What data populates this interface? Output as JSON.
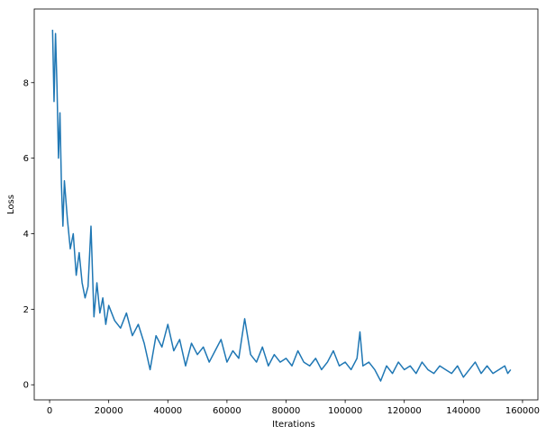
{
  "chart_data": {
    "type": "line",
    "x_label": "Iterations",
    "y_label": "Loss",
    "color": "#1f77b4",
    "x": [
      1000,
      1500,
      2000,
      2500,
      3000,
      3500,
      4000,
      4500,
      5000,
      6000,
      7000,
      8000,
      9000,
      10000,
      11000,
      12000,
      13000,
      14000,
      15000,
      16000,
      17000,
      18000,
      19000,
      20000,
      22000,
      24000,
      26000,
      28000,
      30000,
      32000,
      34000,
      36000,
      38000,
      40000,
      42000,
      44000,
      46000,
      48000,
      50000,
      52000,
      54000,
      56000,
      58000,
      60000,
      62000,
      64000,
      66000,
      68000,
      70000,
      72000,
      74000,
      76000,
      78000,
      80000,
      82000,
      84000,
      86000,
      88000,
      90000,
      92000,
      94000,
      96000,
      98000,
      100000,
      102000,
      104000,
      105000,
      106000,
      108000,
      110000,
      112000,
      114000,
      116000,
      118000,
      120000,
      122000,
      124000,
      126000,
      128000,
      130000,
      132000,
      134000,
      136000,
      138000,
      140000,
      142000,
      144000,
      146000,
      148000,
      150000,
      152000,
      154000,
      155000,
      156000
    ],
    "values": [
      9.4,
      7.5,
      9.3,
      7.9,
      6.0,
      7.2,
      5.3,
      4.2,
      5.4,
      4.4,
      3.6,
      4.0,
      2.9,
      3.5,
      2.7,
      2.3,
      2.6,
      4.2,
      1.8,
      2.7,
      1.9,
      2.3,
      1.6,
      2.1,
      1.7,
      1.5,
      1.9,
      1.3,
      1.6,
      1.1,
      0.4,
      1.3,
      1.0,
      1.6,
      0.9,
      1.2,
      0.5,
      1.1,
      0.8,
      1.0,
      0.6,
      0.9,
      1.2,
      0.6,
      0.9,
      0.7,
      1.75,
      0.8,
      0.6,
      1.0,
      0.5,
      0.8,
      0.6,
      0.7,
      0.5,
      0.9,
      0.6,
      0.5,
      0.7,
      0.4,
      0.6,
      0.9,
      0.5,
      0.6,
      0.4,
      0.7,
      1.4,
      0.5,
      0.6,
      0.4,
      0.1,
      0.5,
      0.3,
      0.6,
      0.4,
      0.5,
      0.3,
      0.6,
      0.4,
      0.3,
      0.5,
      0.4,
      0.3,
      0.5,
      0.2,
      0.4,
      0.6,
      0.3,
      0.5,
      0.3,
      0.4,
      0.5,
      0.3,
      0.4
    ],
    "xlim": [
      -5200,
      165200
    ],
    "ylim": [
      -0.4,
      9.95
    ],
    "xticks": [
      0,
      20000,
      40000,
      60000,
      80000,
      100000,
      120000,
      140000,
      160000
    ],
    "yticks": [
      0,
      2,
      4,
      6,
      8
    ]
  }
}
